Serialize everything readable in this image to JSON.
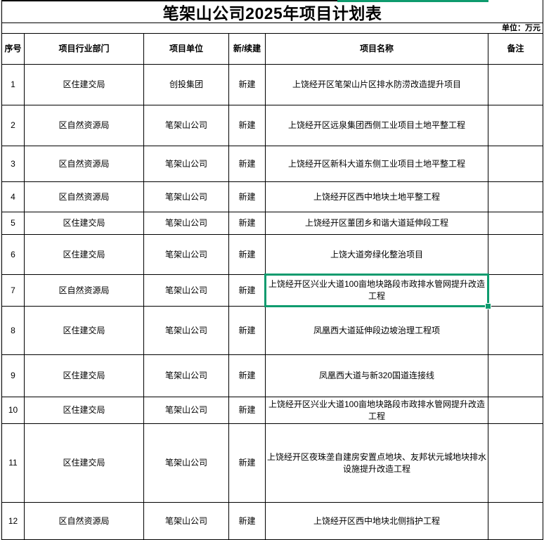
{
  "sheet": {
    "title": "笔架山公司2025年项目计划表",
    "unit_note": "单位：万元",
    "columns": [
      "序号",
      "项目行业部门",
      "项目单位",
      "新/续建",
      "项目名称",
      "备注"
    ],
    "rows": [
      {
        "no": "1",
        "dept": "区住建交局",
        "unit": "创投集团",
        "type": "新建",
        "name": "上饶经开区笔架山片区排水防涝改造提升项目",
        "remark": ""
      },
      {
        "no": "2",
        "dept": "区自然资源局",
        "unit": "笔架山公司",
        "type": "新建",
        "name": "上饶经开区远泉集团西侧工业项目土地平整工程",
        "remark": ""
      },
      {
        "no": "3",
        "dept": "区自然资源局",
        "unit": "笔架山公司",
        "type": "新建",
        "name": "上饶经开区新科大道东侧工业项目土地平整工程",
        "remark": ""
      },
      {
        "no": "4",
        "dept": "区自然资源局",
        "unit": "笔架山公司",
        "type": "新建",
        "name": "上饶经开区西中地块土地平整工程",
        "remark": ""
      },
      {
        "no": "5",
        "dept": "区住建交局",
        "unit": "笔架山公司",
        "type": "新建",
        "name": "上饶经开区董团乡和谐大道延伸段工程",
        "remark": ""
      },
      {
        "no": "6",
        "dept": "区住建交局",
        "unit": "笔架山公司",
        "type": "新建",
        "name": "上饶大道旁绿化整治项目",
        "remark": ""
      },
      {
        "no": "7",
        "dept": "区自然资源局",
        "unit": "笔架山公司",
        "type": "新建",
        "name": "上饶经开区兴业大道100亩地块路段市政排水管网提升改造工程",
        "remark": ""
      },
      {
        "no": "8",
        "dept": "区住建交局",
        "unit": "笔架山公司",
        "type": "新建",
        "name": "凤凰西大道延伸段边坡治理工程项",
        "remark": ""
      },
      {
        "no": "9",
        "dept": "区住建交局",
        "unit": "笔架山公司",
        "type": "新建",
        "name": "凤凰西大道与新320国道连接线",
        "remark": ""
      },
      {
        "no": "10",
        "dept": "区住建交局",
        "unit": "笔架山公司",
        "type": "新建",
        "name": "上饶经开区兴业大道100亩地块路段市政排水管网提升改造工程",
        "remark": ""
      },
      {
        "no": "11",
        "dept": "区住建交局",
        "unit": "笔架山公司",
        "type": "新建",
        "name": "上饶经开区夜珠垄自建房安置点地块、友邦状元城地块排水设施提升改造工程",
        "remark": ""
      },
      {
        "no": "12",
        "dept": "区自然资源局",
        "unit": "笔架山公司",
        "type": "新建",
        "name": "上饶经开区西中地块北侧挡护工程",
        "remark": ""
      }
    ],
    "selection": {
      "row_no": "7",
      "column": "项目名称",
      "color": "#0e9b6e"
    }
  }
}
